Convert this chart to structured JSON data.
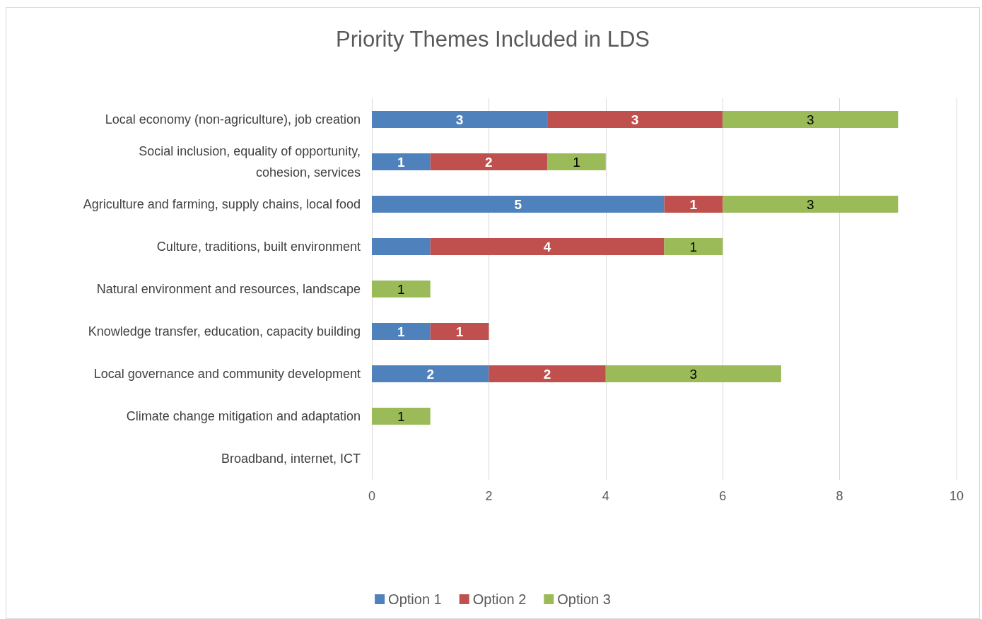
{
  "chart_data": {
    "type": "bar",
    "title": "Priority Themes Included in LDS",
    "orientation": "horizontal",
    "stacked": true,
    "categories": [
      "Local economy (non-agriculture), job creation",
      "Social inclusion, equality of opportunity,\ncohesion, services",
      "Agriculture and farming, supply chains, local food",
      "Culture, traditions, built environment",
      "Natural environment and resources, landscape",
      "Knowledge transfer, education, capacity building",
      "Local governance and community development",
      "Climate change mitigation and adaptation",
      "Broadband, internet, ICT"
    ],
    "series": [
      {
        "name": "Option 1",
        "color": "#4f81bd",
        "values": [
          3,
          1,
          5,
          1,
          null,
          1,
          2,
          null,
          null
        ],
        "value_labels": [
          "3",
          "1",
          "5",
          null,
          null,
          "1",
          "2",
          null,
          null
        ]
      },
      {
        "name": "Option 2",
        "color": "#c0504d",
        "values": [
          3,
          2,
          1,
          4,
          null,
          1,
          2,
          null,
          null
        ],
        "value_labels": [
          "3",
          "2",
          "1",
          "4",
          null,
          "1",
          "2",
          null,
          null
        ]
      },
      {
        "name": "Option 3",
        "color": "#9bbb59",
        "values": [
          3,
          1,
          3,
          1,
          1,
          null,
          3,
          1,
          null
        ],
        "value_labels": [
          "3",
          "1",
          "3",
          "1",
          "1",
          null,
          "3",
          "1",
          null
        ]
      }
    ],
    "xlim": [
      0,
      10
    ],
    "xticks": [
      0,
      2,
      4,
      6,
      8,
      10
    ],
    "grid": "x",
    "legend": "bottom"
  }
}
